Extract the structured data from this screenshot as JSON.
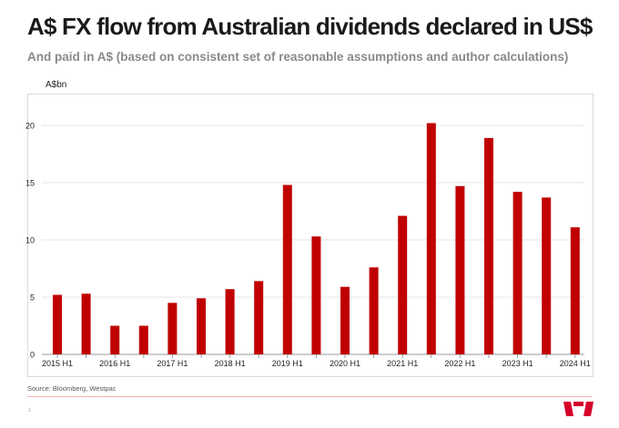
{
  "header": {
    "title": "A$ FX flow from Australian dividends declared in US$",
    "subtitle": "And paid in A$ (based on consistent set of reasonable assumptions and author calculations)",
    "unit": "A$bn"
  },
  "footer": {
    "source": "Source: Bloomberg, Westpac",
    "page_number": "1",
    "logo": "westpac-logo"
  },
  "colors": {
    "bar": "#c00000",
    "grid": "#e6e6e6",
    "accent": "#d5002b"
  },
  "chart_data": {
    "type": "bar",
    "title": "A$ FX flow from Australian dividends declared in US$",
    "ylabel": "A$bn",
    "xlabel": "",
    "ylim": [
      0,
      22
    ],
    "yticks": [
      0,
      5,
      10,
      15,
      20
    ],
    "grid": true,
    "categories": [
      "2015 H1",
      "2015 H2",
      "2016 H1",
      "2016 H2",
      "2017 H1",
      "2017 H2",
      "2018 H1",
      "2018 H2",
      "2019 H1",
      "2019 H2",
      "2020 H1",
      "2020 H2",
      "2021 H1",
      "2021 H2",
      "2022 H1",
      "2022 H2",
      "2023 H1",
      "2023 H2",
      "2024 H1"
    ],
    "xtick_labels": [
      "2015 H1",
      "2016 H1",
      "2017 H1",
      "2018 H1",
      "2019 H1",
      "2020 H1",
      "2021 H1",
      "2022 H1",
      "2023 H1",
      "2024 H1"
    ],
    "values": [
      5.2,
      5.3,
      2.5,
      2.5,
      4.5,
      4.9,
      5.7,
      6.4,
      14.8,
      10.3,
      5.9,
      7.6,
      12.1,
      20.2,
      14.7,
      18.9,
      14.2,
      13.7,
      11.1
    ]
  }
}
